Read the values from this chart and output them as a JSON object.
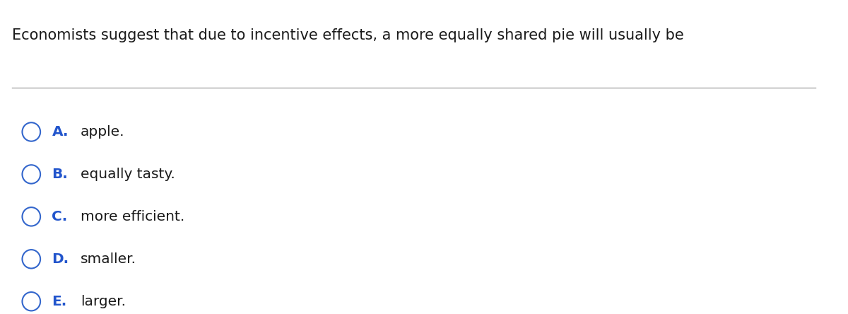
{
  "question": "Economists suggest that due to incentive effects, a more equally shared pie will usually be",
  "options": [
    {
      "letter": "A.",
      "text": "apple."
    },
    {
      "letter": "B.",
      "text": "equally tasty."
    },
    {
      "letter": "C.",
      "text": "more efficient."
    },
    {
      "letter": "D.",
      "text": "smaller."
    },
    {
      "letter": "E.",
      "text": "larger."
    }
  ],
  "background_color": "#ffffff",
  "question_color": "#1a1a1a",
  "letter_color": "#2255cc",
  "text_color": "#1a1a1a",
  "line_color": "#aaaaaa",
  "question_fontsize": 15,
  "option_fontsize": 14.5,
  "circle_color": "#3366cc",
  "fig_width": 12.0,
  "fig_height": 4.44
}
